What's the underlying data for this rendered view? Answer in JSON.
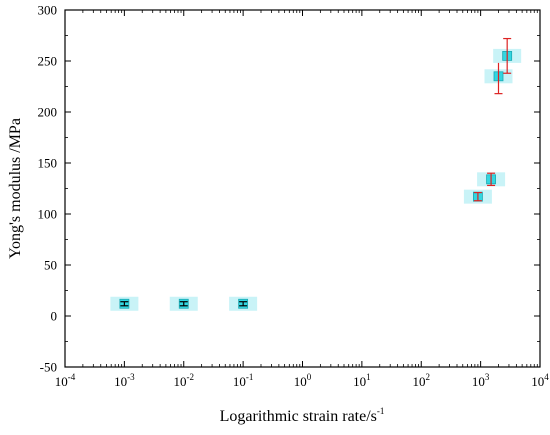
{
  "chart_data": {
    "type": "scatter",
    "title": "",
    "xlabel": "Logarithmic strain rate/s",
    "xlabel_superscript": "-1",
    "ylabel": "Yong's modulus /MPa",
    "x_scale": "log",
    "xlim": [
      0.0001,
      10000
    ],
    "ylim": [
      -50,
      300
    ],
    "x_ticks": [
      {
        "value": 0.0001,
        "base": "10",
        "exp": "-4"
      },
      {
        "value": 0.001,
        "base": "10",
        "exp": "-3"
      },
      {
        "value": 0.01,
        "base": "10",
        "exp": "-2"
      },
      {
        "value": 0.1,
        "base": "10",
        "exp": "-1"
      },
      {
        "value": 1,
        "base": "10",
        "exp": "0"
      },
      {
        "value": 10,
        "base": "10",
        "exp": "1"
      },
      {
        "value": 100,
        "base": "10",
        "exp": "2"
      },
      {
        "value": 1000,
        "base": "10",
        "exp": "3"
      },
      {
        "value": 10000,
        "base": "10",
        "exp": "4"
      }
    ],
    "y_ticks": [
      "300",
      "250",
      "200",
      "150",
      "100",
      "50",
      "0",
      "-50"
    ],
    "grid": false,
    "legend": "none",
    "marker": "square",
    "marker_color": "#33d6e0",
    "marker_halo_color": "#c9f3f7",
    "errorbar_color": "#dd2222",
    "series": [
      {
        "points": [
          {
            "x": 0.001,
            "y": 12,
            "err": 2
          },
          {
            "x": 0.01,
            "y": 12,
            "err": 2
          },
          {
            "x": 0.1,
            "y": 12,
            "err": 2
          },
          {
            "x": 900,
            "y": 117,
            "err": 4
          },
          {
            "x": 1500,
            "y": 134,
            "err": 6
          },
          {
            "x": 2000,
            "y": 235,
            "err": 17
          },
          {
            "x": 2800,
            "y": 255,
            "err": 17
          }
        ]
      }
    ]
  }
}
